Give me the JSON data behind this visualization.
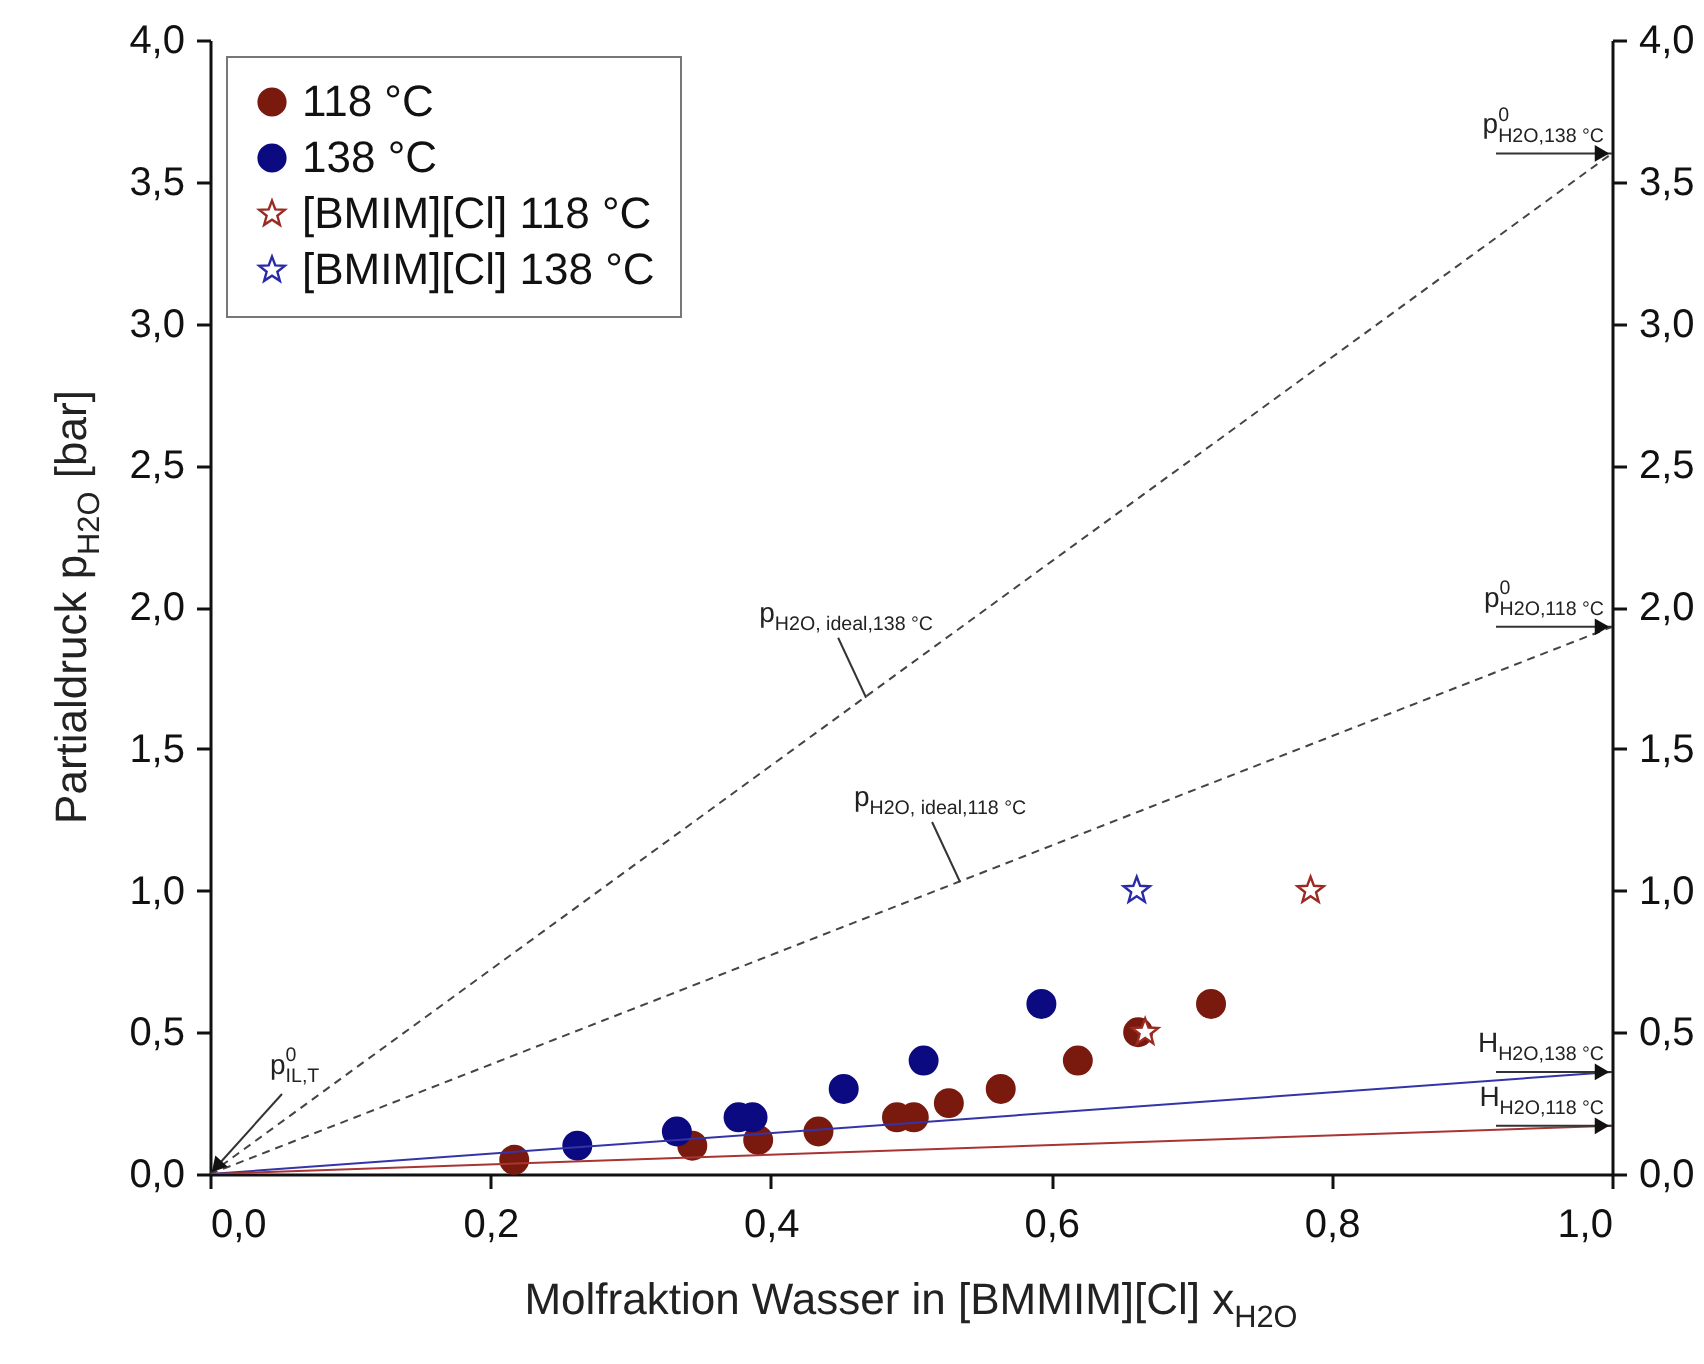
{
  "chart_data": {
    "type": "scatter",
    "xlabel": "Molfraktion Wasser in [BMMIM][Cl] x$_{H2O}$",
    "ylabel": "Partialdruck p$_{H2O}$ [bar]",
    "xlim": [
      0,
      1
    ],
    "xticks": [
      {
        "value": 0,
        "label": "0,0"
      },
      {
        "value": 0.2,
        "label": "0,2"
      },
      {
        "value": 0.4,
        "label": "0,4"
      },
      {
        "value": 0.6,
        "label": "0,6"
      },
      {
        "value": 0.8,
        "label": "0,8"
      },
      {
        "value": 1,
        "label": "1,0"
      }
    ],
    "ylim": [
      0,
      4
    ],
    "yticks": [
      {
        "value": 0,
        "label": "0,0"
      },
      {
        "value": 0.5,
        "label": "0,5"
      },
      {
        "value": 1,
        "label": "1,0"
      },
      {
        "value": 1.5,
        "label": "1,5"
      },
      {
        "value": 2,
        "label": "2,0"
      },
      {
        "value": 2.5,
        "label": "2,5"
      },
      {
        "value": 3,
        "label": "3,0"
      },
      {
        "value": 3.5,
        "label": "3,5"
      },
      {
        "value": 4,
        "label": "4,0"
      }
    ],
    "y2lim": [
      0,
      4
    ],
    "y2ticks": [
      {
        "value": 0,
        "label": "0,0"
      },
      {
        "value": 0.5,
        "label": "0,5"
      },
      {
        "value": 1,
        "label": "1,0"
      },
      {
        "value": 1.5,
        "label": "1,5"
      },
      {
        "value": 2,
        "label": "2,0"
      },
      {
        "value": 2.5,
        "label": "2,5"
      },
      {
        "value": 3,
        "label": "3,0"
      },
      {
        "value": 3.5,
        "label": "3,5"
      },
      {
        "value": 4,
        "label": "4,0"
      }
    ],
    "legend": "top left",
    "grid": false,
    "series": [
      {
        "name": "118 °C",
        "color": "#7a1a0e",
        "marker": "circle",
        "x": [
          0.217,
          0.344,
          0.391,
          0.434,
          0.49,
          0.502,
          0.527,
          0.564,
          0.619,
          0.662,
          0.714
        ],
        "values": [
          0.05,
          0.1,
          0.12,
          0.15,
          0.2,
          0.2,
          0.25,
          0.3,
          0.4,
          0.5,
          0.6
        ]
      },
      {
        "name": "138 °C",
        "color": "#0b0a80",
        "marker": "circle",
        "x": [
          0.262,
          0.333,
          0.377,
          0.387,
          0.452,
          0.509,
          0.593
        ],
        "values": [
          0.1,
          0.15,
          0.2,
          0.2,
          0.3,
          0.4,
          0.6
        ]
      },
      {
        "name": "[BMIM][Cl] 118 °C",
        "color": "#9a2a22",
        "marker": "star",
        "x": [
          0.667,
          0.785
        ],
        "values": [
          0.5,
          1.0
        ]
      },
      {
        "name": "[BMIM][Cl] 138 °C",
        "color": "#2a2aa8",
        "marker": "star",
        "x": [
          0.661
        ],
        "values": [
          1.0
        ]
      },
      {
        "type": "line",
        "color": "#444444",
        "line_style": "dashed",
        "x": [
          0,
          1
        ],
        "values": [
          0,
          3.6
        ]
      },
      {
        "type": "line",
        "color": "#444444",
        "line_style": "dashed",
        "x": [
          0,
          1
        ],
        "values": [
          0,
          1.93
        ]
      },
      {
        "type": "line",
        "color": "#3434a8",
        "line_style": "solid",
        "x": [
          0,
          1
        ],
        "values": [
          0,
          0.36
        ]
      },
      {
        "type": "line",
        "color": "#a83434",
        "line_style": "solid",
        "x": [
          0,
          1
        ],
        "values": [
          0,
          0.17
        ]
      }
    ],
    "annotations": [
      {
        "text": "p$^{0}$$_{H2O,138 °C}$",
        "x": 1,
        "y": 3.6
      },
      {
        "text": "p$^{0}$$_{H2O,118 °C}$",
        "x": 1,
        "y": 1.93
      },
      {
        "text": "H$_{H2O,138 °C}$",
        "x": 1,
        "y": 0.36
      },
      {
        "text": "H$_{H2O,118 °C}$",
        "x": 1,
        "y": 0.17
      },
      {
        "text": "p$_{H2O, ideal,138 °C}$",
        "x": 0.468,
        "y": 1.68
      },
      {
        "text": "p$_{H2O, ideal,118 °C}$",
        "x": 0.535,
        "y": 1.03
      },
      {
        "text": "p$^{0}$$_{IL,T}$",
        "x": 0,
        "y": 0
      }
    ]
  }
}
